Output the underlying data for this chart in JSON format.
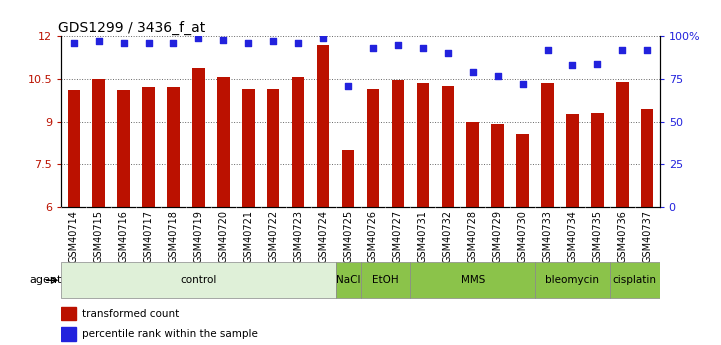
{
  "title": "GDS1299 / 3436_f_at",
  "samples": [
    "GSM40714",
    "GSM40715",
    "GSM40716",
    "GSM40717",
    "GSM40718",
    "GSM40719",
    "GSM40720",
    "GSM40721",
    "GSM40722",
    "GSM40723",
    "GSM40724",
    "GSM40725",
    "GSM40726",
    "GSM40727",
    "GSM40731",
    "GSM40732",
    "GSM40728",
    "GSM40729",
    "GSM40730",
    "GSM40733",
    "GSM40734",
    "GSM40735",
    "GSM40736",
    "GSM40737"
  ],
  "bar_values": [
    10.1,
    10.5,
    10.1,
    10.2,
    10.2,
    10.9,
    10.55,
    10.15,
    10.15,
    10.55,
    11.7,
    8.0,
    10.15,
    10.45,
    10.35,
    10.25,
    9.0,
    8.9,
    8.55,
    10.35,
    9.25,
    9.3,
    10.4,
    9.45
  ],
  "percentile_values": [
    96,
    97,
    96,
    96,
    96,
    99,
    98,
    96,
    97,
    96,
    99,
    71,
    93,
    95,
    93,
    90,
    79,
    77,
    72,
    92,
    83,
    84,
    92,
    92
  ],
  "ylim_left": [
    6,
    12
  ],
  "ylim_right": [
    0,
    100
  ],
  "yticks_left": [
    6,
    7.5,
    9,
    10.5,
    12
  ],
  "yticks_right": [
    0,
    25,
    50,
    75,
    100
  ],
  "bar_color": "#bb1100",
  "dot_color": "#2222dd",
  "agents": [
    {
      "label": "control",
      "start": 0,
      "end": 11,
      "light": true
    },
    {
      "label": "NaCl",
      "start": 11,
      "end": 12,
      "light": false
    },
    {
      "label": "EtOH",
      "start": 12,
      "end": 14,
      "light": false
    },
    {
      "label": "MMS",
      "start": 14,
      "end": 19,
      "light": false
    },
    {
      "label": "bleomycin",
      "start": 19,
      "end": 22,
      "light": false
    },
    {
      "label": "cisplatin",
      "start": 22,
      "end": 24,
      "light": false
    }
  ],
  "agent_color_light": "#dff0d8",
  "agent_color_dark": "#8bc34a",
  "legend_bar_label": "transformed count",
  "legend_dot_label": "percentile rank within the sample",
  "agent_label": "agent",
  "grid_color": "#666666",
  "grid_linestyle": ":",
  "grid_linewidth": 0.7,
  "bar_width": 0.5,
  "tick_label_fontsize": 7,
  "ytick_fontsize": 8,
  "title_fontsize": 10
}
